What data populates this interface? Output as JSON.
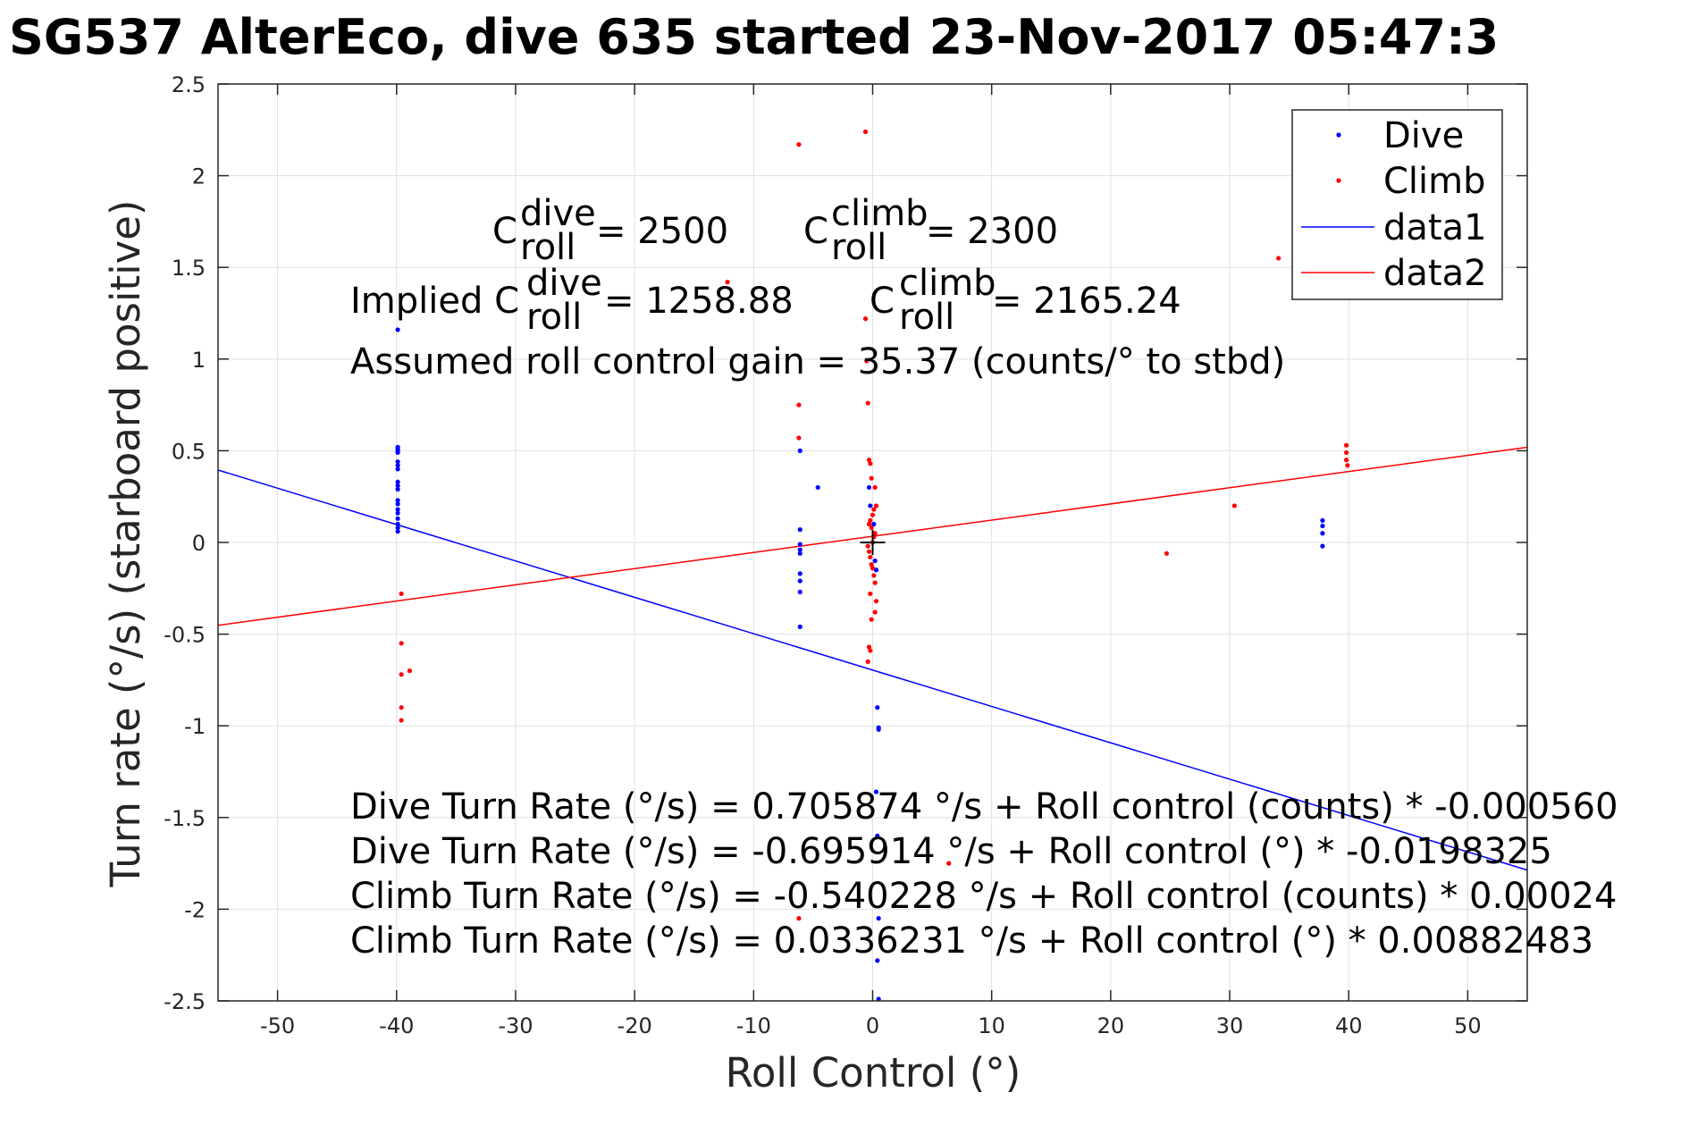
{
  "chart_data": {
    "type": "scatter",
    "title": "SG537 AlterEco, dive 635 started 23-Nov-2017 05:47:3",
    "xlabel": "Roll Control (°)",
    "ylabel": "Turn rate (°/s) (starboard positive)",
    "xlim": [
      -55,
      55
    ],
    "ylim": [
      -2.5,
      2.5
    ],
    "xticks": [
      -50,
      -40,
      -30,
      -20,
      -10,
      0,
      10,
      20,
      30,
      40,
      50
    ],
    "yticks": [
      -2.5,
      -2,
      -1.5,
      -1,
      -0.5,
      0,
      0.5,
      1,
      1.5,
      2,
      2.5
    ],
    "grid": true,
    "legend_position": "top-right",
    "legend": [
      "Dive",
      "Climb",
      "data1",
      "data2"
    ],
    "colors": {
      "dive": "#0000ff",
      "climb": "#ff0000",
      "axes": "#262626",
      "grid": "#e0e0e0"
    },
    "series": [
      {
        "name": "Dive",
        "kind": "points",
        "x": [
          -39.9,
          -39.9,
          -39.9,
          -39.9,
          -39.9,
          -39.9,
          -39.9,
          -39.9,
          -39.9,
          -39.9,
          -39.9,
          -39.9,
          -39.9,
          -39.9,
          -39.9,
          -39.9,
          -39.9,
          -39.9,
          -39.9,
          -6.1,
          -6.1,
          -6.1,
          -6.1,
          -6.1,
          -6.1,
          -6.1,
          -6.1,
          -6.1,
          -4.6,
          -0.3,
          -0.2,
          0.1,
          0.2,
          0.3,
          0.4,
          0.5,
          0.5,
          0.3,
          0.4,
          0.5,
          0.4,
          0.5,
          37.8,
          37.8,
          37.8,
          37.8
        ],
        "y": [
          1.16,
          0.52,
          0.51,
          0.5,
          0.49,
          0.44,
          0.42,
          0.4,
          0.33,
          0.31,
          0.29,
          0.23,
          0.21,
          0.18,
          0.16,
          0.13,
          0.1,
          0.08,
          0.06,
          0.5,
          0.07,
          -0.01,
          -0.04,
          -0.06,
          -0.17,
          -0.21,
          -0.27,
          -0.46,
          0.3,
          0.3,
          0.2,
          0.1,
          -0.1,
          -0.15,
          -0.9,
          -1.01,
          -1.02,
          -1.36,
          -1.6,
          -2.05,
          -2.28,
          -2.49,
          0.12,
          0.09,
          0.05,
          -0.02
        ]
      },
      {
        "name": "Climb",
        "kind": "points",
        "x": [
          -39.6,
          -39.6,
          -39.6,
          -39.6,
          -39.6,
          -38.9,
          -12.2,
          -6.2,
          -6.2,
          -6.2,
          -6.2,
          -0.6,
          -0.6,
          -0.5,
          -0.4,
          -0.3,
          -0.2,
          -0.1,
          0.2,
          0.3,
          0.1,
          0.0,
          -0.2,
          -0.3,
          -0.1,
          0.2,
          0.1,
          0.0,
          -0.4,
          -0.3,
          -0.2,
          -0.1,
          0.0,
          0.1,
          0.2,
          -0.2,
          0.3,
          0.2,
          -0.1,
          -0.3,
          -0.2,
          -0.4,
          6.4,
          24.7,
          30.4,
          34.1,
          39.8,
          39.8,
          39.8,
          39.9
        ],
        "y": [
          -0.28,
          -0.55,
          -0.72,
          -0.9,
          -0.97,
          -0.7,
          1.42,
          2.17,
          0.75,
          0.57,
          -2.05,
          2.24,
          1.22,
          0.99,
          0.76,
          0.45,
          0.43,
          0.35,
          0.3,
          0.2,
          0.18,
          0.15,
          0.12,
          0.1,
          0.08,
          0.05,
          0.03,
          0.0,
          -0.02,
          -0.05,
          -0.08,
          -0.12,
          -0.14,
          -0.18,
          -0.22,
          -0.28,
          -0.32,
          -0.38,
          -0.42,
          -0.57,
          -0.59,
          -0.65,
          -1.75,
          -0.06,
          0.2,
          1.55,
          0.53,
          0.49,
          0.45,
          0.42
        ]
      },
      {
        "name": "data1",
        "kind": "line",
        "intercept": -0.695914,
        "slope": -0.0198325
      },
      {
        "name": "data2",
        "kind": "line",
        "intercept": 0.0336231,
        "slope": 0.00882483
      }
    ],
    "marker": {
      "x": 0,
      "y": 0,
      "symbol": "+"
    },
    "annotations": {
      "c_dive_prefix": "C",
      "c_dive_sup": "dive",
      "c_dive_sub": "roll",
      "c_dive_value": "= 2500",
      "c_climb_prefix": "C",
      "c_climb_sup": "climb",
      "c_climb_sub": "roll",
      "c_climb_value": "= 2300",
      "implied_prefix": "Implied C",
      "implied_dive_sup": "dive",
      "implied_dive_sub": "roll",
      "implied_dive_value": "= 1258.88",
      "implied_climb_prefix": "C",
      "implied_climb_sup": "climb",
      "implied_climb_sub": "roll",
      "implied_climb_value": "= 2165.24",
      "gain": "Assumed roll control gain = 35.37 (counts/° to stbd)",
      "fit1": "Dive Turn Rate (°/s) = 0.705874 °/s + Roll control (counts) * -0.000560",
      "fit2": "Dive Turn Rate (°/s) = -0.695914 °/s + Roll control (°) * -0.0198325",
      "fit3": "Climb Turn Rate (°/s) = -0.540228 °/s + Roll control (counts) * 0.00024",
      "fit4": "Climb Turn Rate (°/s) = 0.0336231 °/s + Roll control (°) * 0.00882483"
    }
  }
}
